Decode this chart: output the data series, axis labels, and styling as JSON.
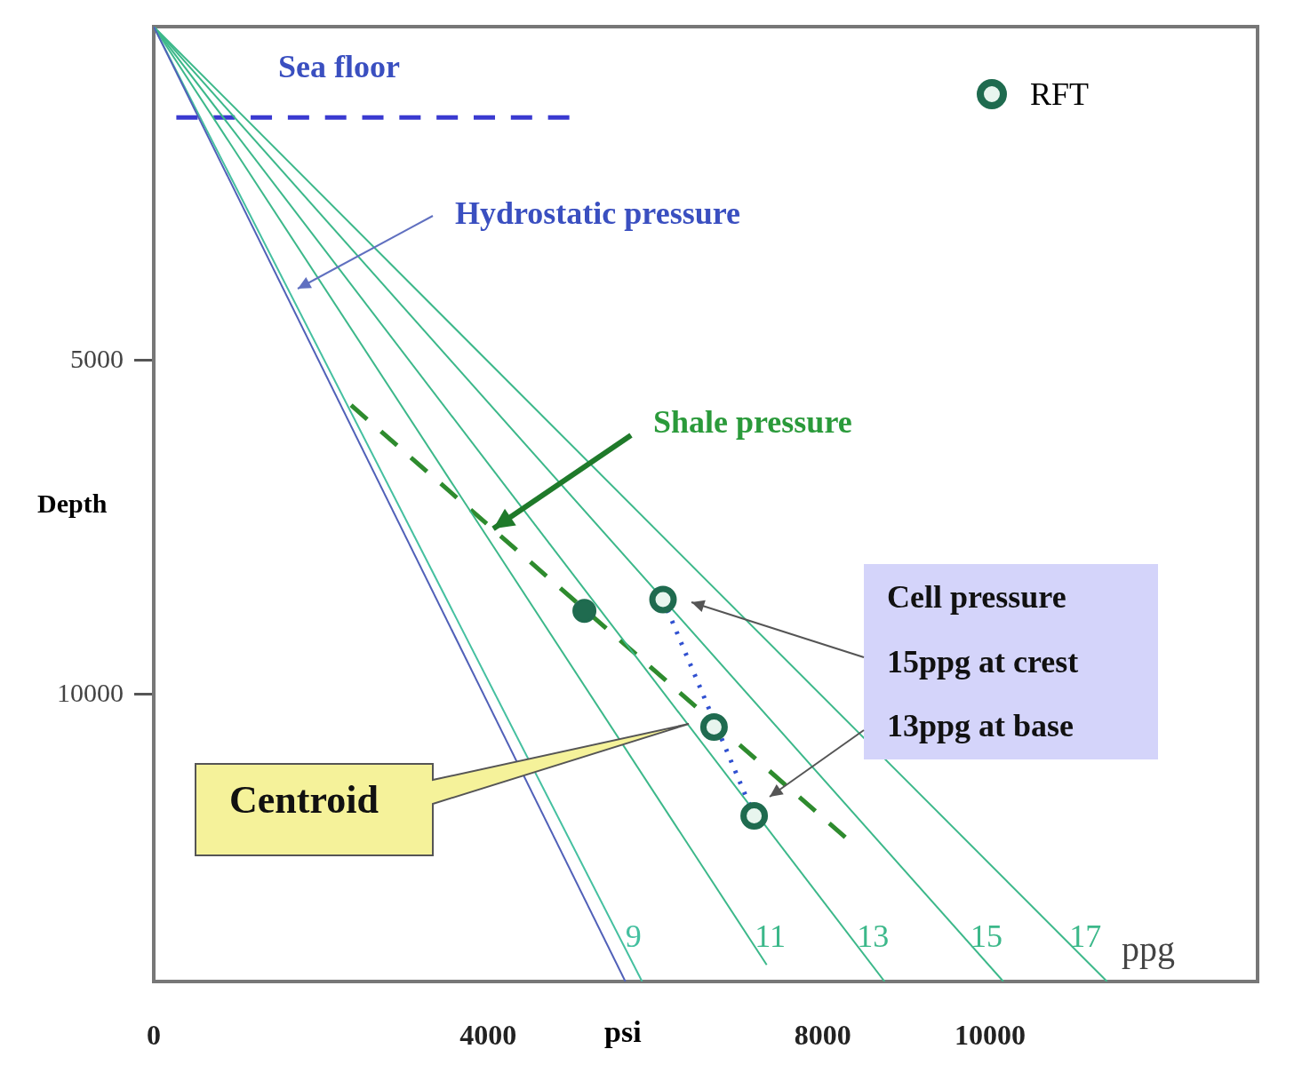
{
  "chart_data": {
    "type": "line",
    "xlabel": "psi",
    "ylabel": "Depth",
    "xlim": [
      0,
      13200
    ],
    "ylim": [
      14300,
      0
    ],
    "xticks": [
      0,
      4000,
      8000,
      10000
    ],
    "yticks": [
      5000,
      10000
    ],
    "legend": "top right",
    "series": [
      {
        "color": "#5060b8",
        "x": [
          0,
          5640
        ],
        "values": [
          0,
          14300
        ],
        "marker": "none",
        "line_style": "solid"
      },
      {
        "name": "9",
        "color": "#45c0a0",
        "x": [
          0,
          5840
        ],
        "values": [
          0,
          14300
        ],
        "marker": "none",
        "line_style": "solid"
      },
      {
        "name": "11",
        "color": "#3cb88a",
        "x": [
          0,
          7330
        ],
        "values": [
          0,
          14050
        ],
        "marker": "none",
        "line_style": "solid"
      },
      {
        "name": "13",
        "color": "#3cb88a",
        "x": [
          0,
          8740
        ],
        "values": [
          0,
          14300
        ],
        "marker": "none",
        "line_style": "solid"
      },
      {
        "name": "15",
        "color": "#3cb88a",
        "x": [
          0,
          10160
        ],
        "values": [
          0,
          14300
        ],
        "marker": "none",
        "line_style": "solid"
      },
      {
        "name": "17",
        "color": "#3cb88a",
        "x": [
          0,
          11400
        ],
        "values": [
          0,
          14300
        ],
        "marker": "none",
        "line_style": "solid"
      },
      {
        "color": "#3a3ad0",
        "x": [
          270,
          4970
        ],
        "values": [
          1360,
          1360
        ],
        "marker": "none",
        "line_style": "dashed"
      },
      {
        "color": "#2e8b2e",
        "x": [
          2360,
          8270
        ],
        "values": [
          5670,
          12140
        ],
        "marker": "none",
        "line_style": "dashed"
      },
      {
        "color": "#3050d0",
        "x": [
          6090,
          7180
        ],
        "values": [
          8580,
          11820
        ],
        "marker": "none",
        "line_style": "dotted"
      },
      {
        "type": "scatter",
        "color": "#1f6b4f",
        "x": [
          5150
        ],
        "values": [
          8750
        ],
        "marker": "circle"
      },
      {
        "type": "scatter",
        "name": "RFT",
        "color": "#1f6b4f",
        "x": [
          6090,
          6700,
          7180
        ],
        "values": [
          8580,
          10490,
          11820
        ],
        "marker": "circle"
      }
    ],
    "annotations": [
      "Sea floor",
      "Hydrostatic pressure",
      {
        "text": "Shale pressure",
        "x": 4060,
        "y": 7520
      },
      "Cell pressure",
      "15ppg at crest",
      "13ppg at base",
      "Centroid",
      "ppg"
    ]
  }
}
